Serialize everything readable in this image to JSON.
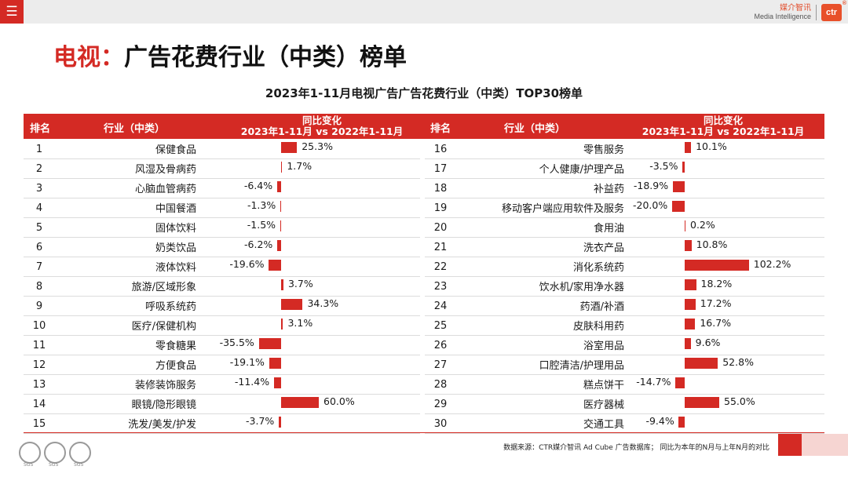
{
  "app": {
    "menu_icon": "hamburger-menu-icon"
  },
  "logo": {
    "cn": "媒介智讯",
    "en": "Media Intelligence",
    "mark": "ctr",
    "reg": "®"
  },
  "page_title": {
    "part1": "电视：",
    "part2": "广告花费行业（中类）榜单"
  },
  "table_header": {
    "rank": "排名",
    "industry": "行业（中类）",
    "change_line1": "同比变化",
    "change_line2": "2023年1-11月 vs 2022年1-11月"
  },
  "source": "数据来源：CTR媒介智讯 Ad Cube 广告数据库； 同比为本年的N月与上年N月的对比",
  "colors": {
    "accent": "#d42a24",
    "brand_orange": "#e8502a"
  },
  "chart_data": {
    "type": "bar",
    "title": "2023年1-11月电视广告广告花费行业（中类）TOP30榜单",
    "unit": "%",
    "rows": [
      {
        "rank": "1",
        "name": "保健食品",
        "value": 25.3,
        "label": "25.3%"
      },
      {
        "rank": "2",
        "name": "风湿及骨病药",
        "value": 1.7,
        "label": "1.7%"
      },
      {
        "rank": "3",
        "name": "心脑血管病药",
        "value": -6.4,
        "label": "-6.4%"
      },
      {
        "rank": "4",
        "name": "中国餐酒",
        "value": -1.3,
        "label": "-1.3%"
      },
      {
        "rank": "5",
        "name": "固体饮料",
        "value": -1.5,
        "label": "-1.5%"
      },
      {
        "rank": "6",
        "name": "奶类饮品",
        "value": -6.2,
        "label": "-6.2%"
      },
      {
        "rank": "7",
        "name": "液体饮料",
        "value": -19.6,
        "label": "-19.6%"
      },
      {
        "rank": "8",
        "name": "旅游/区域形象",
        "value": 3.7,
        "label": "3.7%"
      },
      {
        "rank": "9",
        "name": "呼吸系统药",
        "value": 34.3,
        "label": "34.3%"
      },
      {
        "rank": "10",
        "name": "医疗/保健机构",
        "value": 3.1,
        "label": "3.1%"
      },
      {
        "rank": "11",
        "name": "零食糖果",
        "value": -35.5,
        "label": "-35.5%"
      },
      {
        "rank": "12",
        "name": "方便食品",
        "value": -19.1,
        "label": "-19.1%"
      },
      {
        "rank": "13",
        "name": "装修装饰服务",
        "value": -11.4,
        "label": "-11.4%"
      },
      {
        "rank": "14",
        "name": "眼镜/隐形眼镜",
        "value": 60.0,
        "label": "60.0%"
      },
      {
        "rank": "15",
        "name": "洗发/美发/护发",
        "value": -3.7,
        "label": "-3.7%"
      },
      {
        "rank": "16",
        "name": "零售服务",
        "value": 10.1,
        "label": "10.1%"
      },
      {
        "rank": "17",
        "name": "个人健康/护理产品",
        "value": -3.5,
        "label": "-3.5%"
      },
      {
        "rank": "18",
        "name": "补益药",
        "value": -18.9,
        "label": "-18.9%"
      },
      {
        "rank": "19",
        "name": "移动客户端应用软件及服务",
        "value": -20.0,
        "label": "-20.0%"
      },
      {
        "rank": "20",
        "name": "食用油",
        "value": 0.2,
        "label": "0.2%"
      },
      {
        "rank": "21",
        "name": "洗衣产品",
        "value": 10.8,
        "label": "10.8%"
      },
      {
        "rank": "22",
        "name": "消化系统药",
        "value": 102.2,
        "label": "102.2%"
      },
      {
        "rank": "23",
        "name": "饮水机/家用净水器",
        "value": 18.2,
        "label": "18.2%"
      },
      {
        "rank": "24",
        "name": "药酒/补酒",
        "value": 17.2,
        "label": "17.2%"
      },
      {
        "rank": "25",
        "name": "皮肤科用药",
        "value": 16.7,
        "label": "16.7%"
      },
      {
        "rank": "26",
        "name": "浴室用品",
        "value": 9.6,
        "label": "9.6%"
      },
      {
        "rank": "27",
        "name": "口腔清洁/护理用品",
        "value": 52.8,
        "label": "52.8%"
      },
      {
        "rank": "28",
        "name": "糕点饼干",
        "value": -14.7,
        "label": "-14.7%"
      },
      {
        "rank": "29",
        "name": "医疗器械",
        "value": 55.0,
        "label": "55.0%"
      },
      {
        "rank": "30",
        "name": "交通工具",
        "value": -9.4,
        "label": "-9.4%"
      }
    ]
  }
}
